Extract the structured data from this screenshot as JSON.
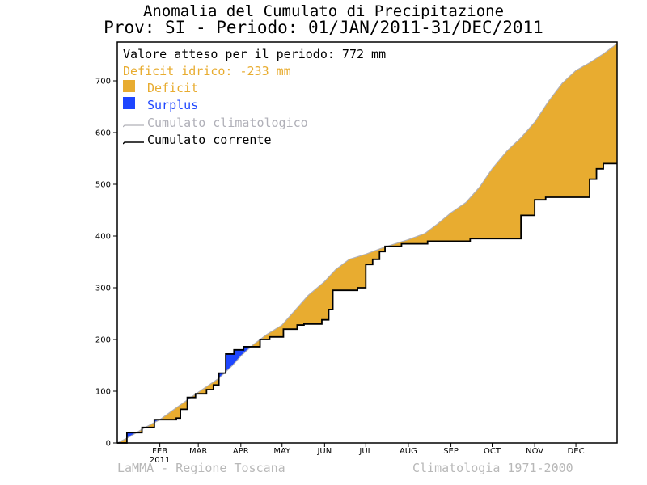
{
  "title": "Anomalia del Cumulato di Precipitazione",
  "subtitle": "Prov: SI - Periodo: 01/JAN/2011-31/DEC/2011",
  "legend": {
    "expected": "Valore atteso per il periodo: 772 mm",
    "deficit_total": "Deficit idrico: -233 mm",
    "deficit": "Deficit",
    "surplus": "Surplus",
    "climatological": "Cumulato climatologico",
    "current": "Cumulato corrente"
  },
  "footer": {
    "left": "LaMMA - Regione Toscana",
    "right": "Climatologia 1971-2000"
  },
  "colors": {
    "deficit": "#e8ac30",
    "surplus": "#1e46ff",
    "climatological": "#b0b0b8",
    "current": "#000000",
    "deficit_text": "#e8ac30",
    "surplus_text": "#1e46ff",
    "climatological_text": "#b0b0b8"
  },
  "chart_data": {
    "type": "area",
    "x_unit": "day of year 2011",
    "xlim": [
      1,
      365
    ],
    "ylim": [
      0,
      775
    ],
    "yticks": [
      0,
      100,
      200,
      300,
      400,
      500,
      600,
      700
    ],
    "month_ticks": [
      {
        "label": "FEB",
        "day": 32
      },
      {
        "label": "MAR",
        "day": 60
      },
      {
        "label": "APR",
        "day": 91
      },
      {
        "label": "MAY",
        "day": 121
      },
      {
        "label": "JUN",
        "day": 152
      },
      {
        "label": "JUL",
        "day": 182
      },
      {
        "label": "AUG",
        "day": 213
      },
      {
        "label": "SEP",
        "day": 244
      },
      {
        "label": "OCT",
        "day": 274
      },
      {
        "label": "NOV",
        "day": 305
      },
      {
        "label": "DEC",
        "day": 335
      }
    ],
    "year_label": "2011",
    "series": [
      {
        "name": "Cumulato climatologico",
        "x": [
          1,
          10,
          20,
          32,
          45,
          60,
          75,
          85,
          91,
          100,
          110,
          121,
          130,
          140,
          152,
          160,
          170,
          182,
          195,
          213,
          225,
          235,
          244,
          255,
          265,
          274,
          285,
          295,
          305,
          315,
          325,
          335,
          345,
          355,
          365
        ],
        "values": [
          0,
          12,
          28,
          45,
          70,
          98,
          125,
          150,
          168,
          190,
          210,
          228,
          255,
          285,
          312,
          335,
          355,
          365,
          378,
          393,
          405,
          425,
          445,
          465,
          495,
          530,
          565,
          590,
          620,
          660,
          695,
          720,
          735,
          752,
          772
        ]
      },
      {
        "name": "Cumulato corrente",
        "x": [
          1,
          8,
          8,
          19,
          19,
          28,
          28,
          44,
          44,
          47,
          47,
          52,
          52,
          58,
          58,
          66,
          66,
          71,
          71,
          75,
          75,
          80,
          80,
          86,
          86,
          93,
          93,
          105,
          105,
          112,
          112,
          122,
          122,
          132,
          132,
          137,
          137,
          150,
          150,
          155,
          155,
          158,
          158,
          176,
          176,
          182,
          182,
          187,
          187,
          192,
          192,
          196,
          196,
          208,
          208,
          227,
          227,
          258,
          258,
          295,
          295,
          305,
          305,
          313,
          313,
          345,
          345,
          350,
          350,
          355,
          355,
          365
        ],
        "values": [
          0,
          0,
          20,
          20,
          30,
          30,
          45,
          45,
          48,
          48,
          65,
          65,
          88,
          88,
          95,
          95,
          103,
          103,
          112,
          112,
          135,
          135,
          172,
          172,
          180,
          180,
          186,
          186,
          200,
          200,
          205,
          205,
          220,
          220,
          228,
          228,
          230,
          230,
          238,
          238,
          258,
          258,
          295,
          295,
          300,
          300,
          345,
          345,
          355,
          355,
          370,
          370,
          380,
          380,
          385,
          385,
          390,
          390,
          395,
          395,
          440,
          440,
          470,
          470,
          475,
          475,
          510,
          510,
          530,
          530,
          540,
          540
        ]
      }
    ]
  }
}
